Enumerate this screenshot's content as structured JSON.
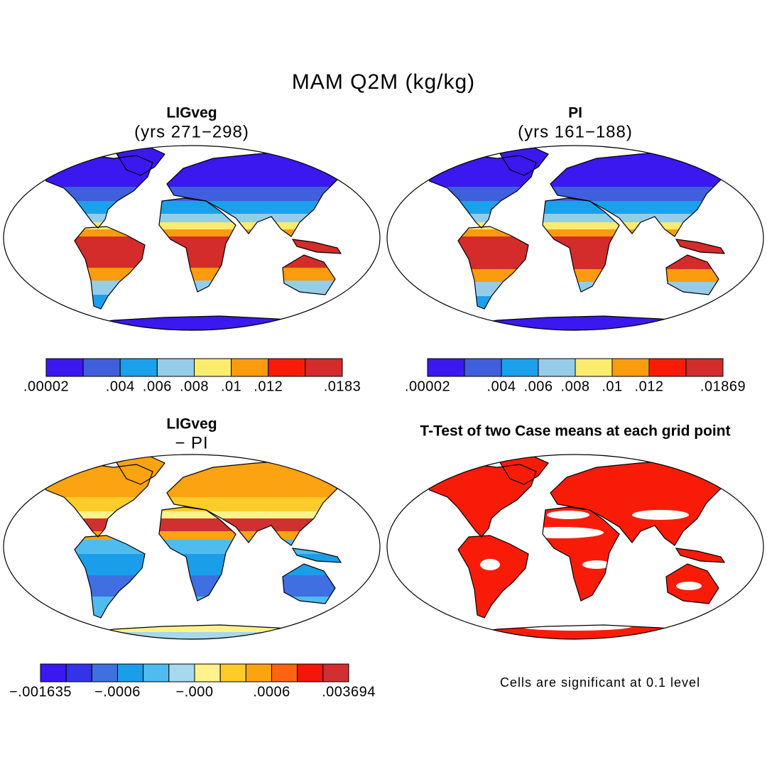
{
  "title": "MAM Q2M (kg/kg)",
  "panels": [
    {
      "title": "LIGveg",
      "subtitle": "(yrs 271−298)",
      "colorbar": {
        "colors": [
          "#3b18f0",
          "#3f5fdc",
          "#1ba0ec",
          "#95cde9",
          "#fbec6f",
          "#fb9c0e",
          "#f81c08",
          "#d42b2b"
        ],
        "labels": [
          ".00002",
          null,
          ".004",
          ".006",
          ".008",
          ".01",
          ".012",
          null,
          ".0183"
        ]
      }
    },
    {
      "title": "PI",
      "subtitle": "(yrs 161−188)",
      "colorbar": {
        "colors": [
          "#3b18f0",
          "#3f5fdc",
          "#1ba0ec",
          "#95cde9",
          "#fbec6f",
          "#fb9c0e",
          "#f81c08",
          "#d42b2b"
        ],
        "labels": [
          ".00002",
          null,
          ".004",
          ".006",
          ".008",
          ".01",
          ".012",
          null,
          ".01869"
        ]
      }
    },
    {
      "title": "LIGveg",
      "subtitle": "− PI",
      "colorbar": {
        "colors": [
          "#3a18f0",
          "#3333e8",
          "#3f6fe0",
          "#1b9ee9",
          "#4fbcef",
          "#a6d8ee",
          "#fdf28c",
          "#fdcb2a",
          "#fca311",
          "#fb6410",
          "#f4150b",
          "#d03030"
        ],
        "labels": [
          "−.001635",
          null,
          null,
          "−.0006",
          null,
          null,
          "−.000",
          null,
          null,
          ".0006",
          null,
          null,
          ".003694"
        ]
      }
    },
    {
      "title": "T-Test of two Case means at each grid point",
      "note": "Cells are significant at 0.1 level"
    }
  ]
}
